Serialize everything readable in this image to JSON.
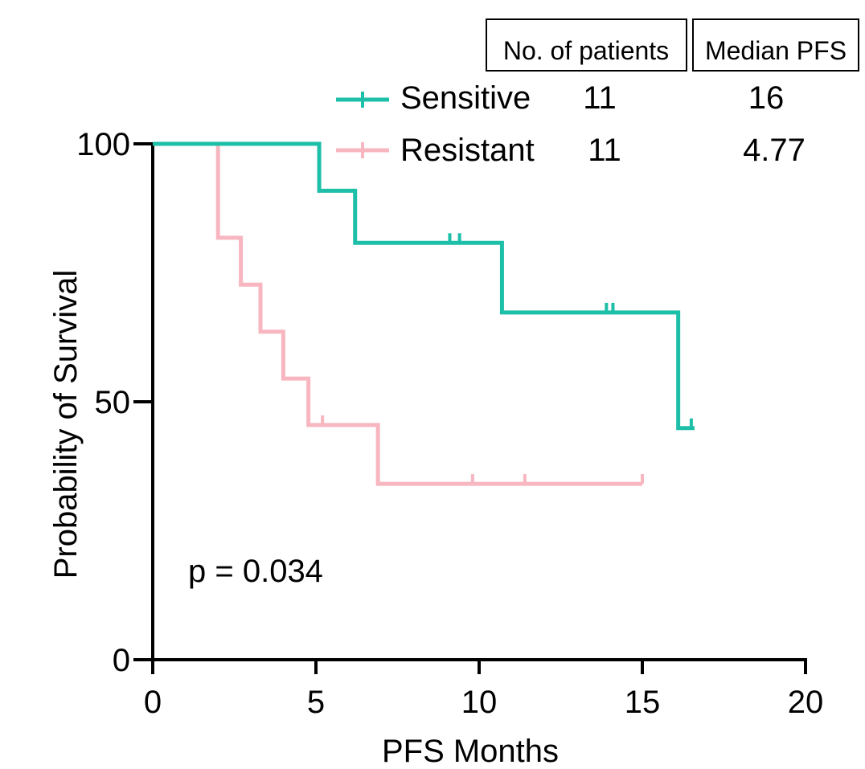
{
  "chart_data": {
    "type": "line",
    "subtype": "kaplan-meier",
    "title": "",
    "xlabel": "PFS Months",
    "ylabel": "Probability of Survival",
    "xlim": [
      0,
      20
    ],
    "ylim": [
      0,
      100
    ],
    "x_ticks": [
      "0",
      "5",
      "10",
      "15",
      "20"
    ],
    "y_ticks": [
      "0",
      "50",
      "100"
    ],
    "table_headers": [
      "No. of patients",
      "Median PFS"
    ],
    "annotation": "p = 0.034",
    "series": [
      {
        "name": "Sensitive",
        "n_patients": "11",
        "median_pfs": "16",
        "color": "#1dbfa8",
        "steps": [
          [
            0,
            100
          ],
          [
            5.1,
            90.9
          ],
          [
            6.2,
            80.8
          ],
          [
            10.7,
            67.3
          ],
          [
            16.1,
            44.9
          ],
          [
            16.6,
            44.9
          ]
        ],
        "censored": [
          [
            9.1,
            80.8
          ],
          [
            9.4,
            80.8
          ],
          [
            13.9,
            67.3
          ],
          [
            14.1,
            67.3
          ],
          [
            16.5,
            44.9
          ]
        ]
      },
      {
        "name": "Resistant",
        "n_patients": "11",
        "median_pfs": "4.77",
        "color": "#f7b6c0",
        "steps": [
          [
            0,
            100
          ],
          [
            2.0,
            81.8
          ],
          [
            2.7,
            72.7
          ],
          [
            3.3,
            63.6
          ],
          [
            4.0,
            54.5
          ],
          [
            4.77,
            45.5
          ],
          [
            6.9,
            34.1
          ],
          [
            15.0,
            34.1
          ]
        ],
        "censored": [
          [
            5.2,
            45.5
          ],
          [
            9.8,
            34.1
          ],
          [
            11.4,
            34.1
          ],
          [
            15.0,
            34.1
          ]
        ]
      }
    ]
  }
}
